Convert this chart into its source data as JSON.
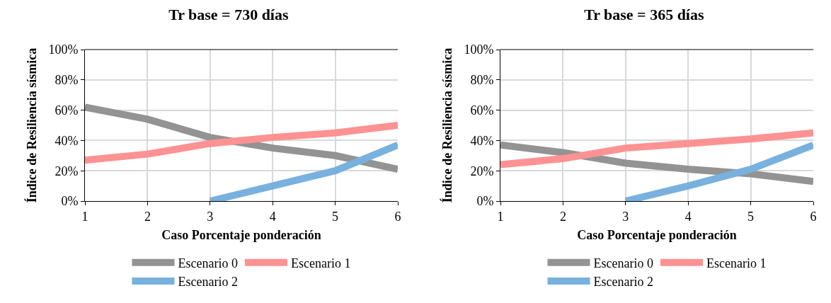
{
  "chart_data": [
    {
      "type": "line",
      "title": "Tr base = 730 días",
      "xlabel": "Caso Porcentaje ponderación",
      "ylabel": "Índice de Resiliencia sísmica",
      "x": [
        1,
        2,
        3,
        4,
        5,
        6
      ],
      "xlim": [
        1,
        6
      ],
      "xticks": [
        1,
        2,
        3,
        4,
        5,
        6
      ],
      "ylim": [
        0,
        100
      ],
      "yticks": [
        {
          "value": 0,
          "label": "0%"
        },
        {
          "value": 20,
          "label": "20%"
        },
        {
          "value": 40,
          "label": "40%"
        },
        {
          "value": 60,
          "label": "60%"
        },
        {
          "value": 80,
          "label": "80%"
        },
        {
          "value": 100,
          "label": "100%"
        }
      ],
      "grid": true,
      "legend": "bottom",
      "marker": "none",
      "line_style": "solid",
      "series": [
        {
          "name": "Escenario 0",
          "color": "#939393",
          "values": [
            62,
            54,
            42,
            35,
            30,
            21
          ]
        },
        {
          "name": "Escenario 1",
          "color": "#fd9293",
          "values": [
            27,
            31,
            38,
            42,
            45,
            50
          ]
        },
        {
          "name": "Escenario 2",
          "color": "#78b1de",
          "values": [
            null,
            null,
            0,
            10,
            20,
            37
          ]
        }
      ]
    },
    {
      "type": "line",
      "title": "Tr base = 365 días",
      "xlabel": "Caso Porcentaje ponderación",
      "ylabel": "Índice de Resiliencia sísmica",
      "x": [
        1,
        2,
        3,
        4,
        5,
        6
      ],
      "xlim": [
        1,
        6
      ],
      "xticks": [
        1,
        2,
        3,
        4,
        5,
        6
      ],
      "ylim": [
        0,
        100
      ],
      "yticks": [
        {
          "value": 0,
          "label": "0%"
        },
        {
          "value": 20,
          "label": "20%"
        },
        {
          "value": 40,
          "label": "40%"
        },
        {
          "value": 60,
          "label": "60%"
        },
        {
          "value": 80,
          "label": "80%"
        },
        {
          "value": 100,
          "label": "100%"
        }
      ],
      "grid": true,
      "legend": "bottom",
      "marker": "none",
      "line_style": "solid",
      "series": [
        {
          "name": "Escenario 0",
          "color": "#939393",
          "values": [
            37,
            32,
            25,
            21,
            18,
            13
          ]
        },
        {
          "name": "Escenario 1",
          "color": "#fd9293",
          "values": [
            24,
            28,
            35,
            38,
            41,
            45
          ]
        },
        {
          "name": "Escenario 2",
          "color": "#78b1de",
          "values": [
            null,
            null,
            0,
            10,
            21,
            37
          ]
        }
      ]
    }
  ]
}
